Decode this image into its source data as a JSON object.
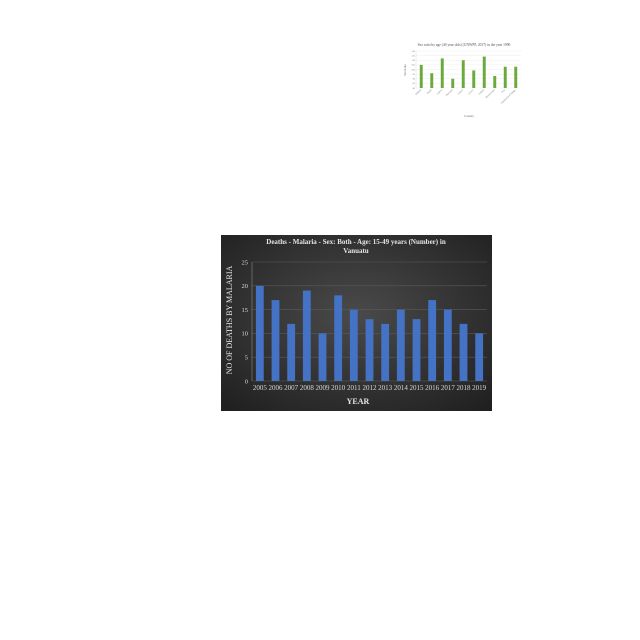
{
  "chart_data": [
    {
      "type": "bar",
      "title": "Sex ratio by age (40 year olds) (UNWPP, 2017) in the year 1990",
      "xlabel": "Country",
      "ylabel": "Sex Ratio",
      "categories": [
        "Albania",
        "Brazil",
        "Cyprus",
        "Denmark",
        "France",
        "Greece",
        "Ireland",
        "Montenegro",
        "Peru",
        "Trinidad and Tobago"
      ],
      "values": [
        105,
        96,
        112,
        90,
        110,
        99,
        114,
        93,
        103,
        103
      ],
      "ylim": [
        80,
        120
      ],
      "ticks": [
        "80",
        "85",
        "90",
        "95",
        "100",
        "105",
        "110",
        "115",
        "120"
      ],
      "bar_color": "#6aaa3c",
      "background": "#ffffff",
      "grid": true
    },
    {
      "type": "bar",
      "title": "Deaths - Malaria - Sex: Both - Age: 15-49 years (Number) in Vanuatu",
      "xlabel": "YEAR",
      "ylabel": "NO OF DEATHS BY MALARIA",
      "categories": [
        "2005",
        "2006",
        "2007",
        "2008",
        "2009",
        "2010",
        "2011",
        "2012",
        "2013",
        "2014",
        "2015",
        "2016",
        "2017",
        "2018",
        "2019"
      ],
      "values": [
        20,
        17,
        12,
        19,
        10,
        18,
        15,
        13,
        12,
        15,
        13,
        17,
        15,
        12,
        10
      ],
      "ylim": [
        0,
        25
      ],
      "ticks": [
        "0",
        "5",
        "10",
        "15",
        "20",
        "25"
      ],
      "bar_color": "#4472c4",
      "background": "#2b2b2b",
      "grid": true
    }
  ]
}
